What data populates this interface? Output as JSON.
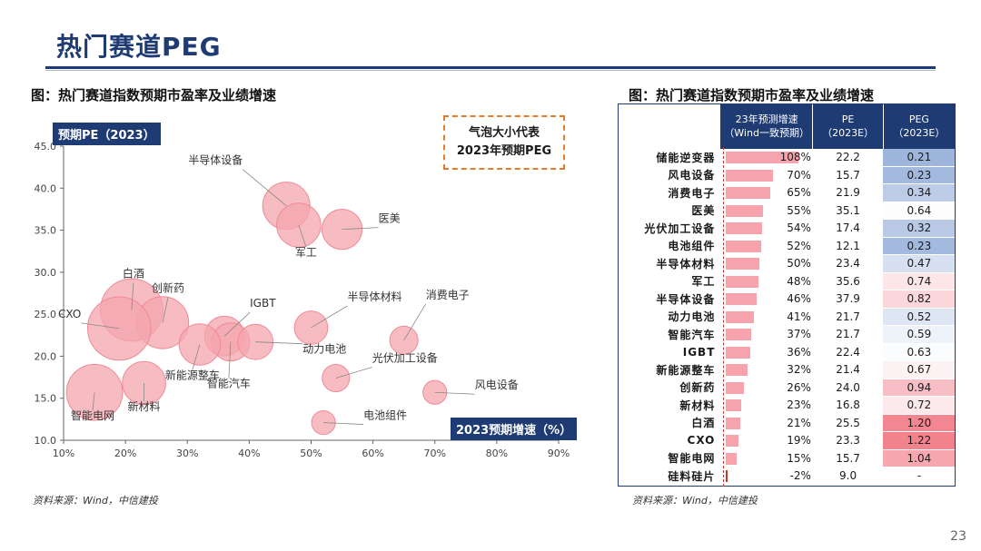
{
  "page": {
    "title": "热门赛道PEG",
    "left_caption": "图：热门赛道指数预期市盈率及业绩增速",
    "right_caption": "图：热门赛道指数预期市盈率及业绩增速",
    "source_left": "资料来源：Wind，中信建投",
    "source_right": "资料来源：Wind，中信建投",
    "page_number": "23",
    "bubble_note": "气泡大小代表\n2023年预期PEG"
  },
  "colors": {
    "navy": "#1f3b73",
    "bubble": "#f4a6ae",
    "bubble_edge": "#f08a96",
    "bar": "#f6a3ad"
  },
  "chart_data": [
    {
      "type": "scatter",
      "ylabel": "预期PE（2023）",
      "xlabel": "2023预期增速（%）",
      "xlim": [
        0.1,
        0.9
      ],
      "ylim": [
        10,
        45
      ],
      "x_ticks": [
        "10%",
        "20%",
        "30%",
        "40%",
        "50%",
        "60%",
        "70%",
        "80%",
        "90%"
      ],
      "y_ticks": [
        "10.0",
        "15.0",
        "20.0",
        "25.0",
        "30.0",
        "35.0",
        "40.0",
        "45.0"
      ],
      "grid": false,
      "points": [
        {
          "label": "半导体设备",
          "x": 0.46,
          "y": 37.9,
          "size": 0.82
        },
        {
          "label": "军工",
          "x": 0.48,
          "y": 35.6,
          "size": 0.74
        },
        {
          "label": "医美",
          "x": 0.55,
          "y": 35.1,
          "size": 0.64
        },
        {
          "label": "白酒",
          "x": 0.21,
          "y": 25.5,
          "size": 1.2
        },
        {
          "label": "创新药",
          "x": 0.26,
          "y": 24.0,
          "size": 0.94
        },
        {
          "label": "CXO",
          "x": 0.19,
          "y": 23.3,
          "size": 1.22
        },
        {
          "label": "IGBT",
          "x": 0.36,
          "y": 22.4,
          "size": 0.63
        },
        {
          "label": "智能汽车",
          "x": 0.37,
          "y": 21.7,
          "size": 0.59
        },
        {
          "label": "半导体材料",
          "x": 0.5,
          "y": 23.4,
          "size": 0.47
        },
        {
          "label": "动力电池",
          "x": 0.41,
          "y": 21.7,
          "size": 0.52
        },
        {
          "label": "新能源整车",
          "x": 0.32,
          "y": 21.4,
          "size": 0.67
        },
        {
          "label": "消费电子",
          "x": 0.65,
          "y": 21.9,
          "size": 0.34
        },
        {
          "label": "光伏加工设备",
          "x": 0.54,
          "y": 17.4,
          "size": 0.32
        },
        {
          "label": "新材料",
          "x": 0.23,
          "y": 16.8,
          "size": 0.72
        },
        {
          "label": "智能电网",
          "x": 0.15,
          "y": 15.7,
          "size": 1.04
        },
        {
          "label": "风电设备",
          "x": 0.7,
          "y": 15.7,
          "size": 0.23
        },
        {
          "label": "电池组件",
          "x": 0.52,
          "y": 12.1,
          "size": 0.23
        }
      ]
    },
    {
      "type": "table",
      "headers": [
        "23年预测增速\n（Wind一致预期）",
        "PE\n（2023E）",
        "PEG\n（2023E）"
      ],
      "rows": [
        {
          "name": "储能逆变器",
          "growth": "108%",
          "g": 1.08,
          "pe": "22.2",
          "peg": "0.21",
          "peg_color": "#9fb6dc"
        },
        {
          "name": "风电设备",
          "growth": "70%",
          "g": 0.7,
          "pe": "15.7",
          "peg": "0.23",
          "peg_color": "#a3b9de"
        },
        {
          "name": "消费电子",
          "growth": "65%",
          "g": 0.65,
          "pe": "21.9",
          "peg": "0.34",
          "peg_color": "#bccbe6"
        },
        {
          "name": "医美",
          "growth": "55%",
          "g": 0.55,
          "pe": "35.1",
          "peg": "0.64",
          "peg_color": "#fdfdfe"
        },
        {
          "name": "光伏加工设备",
          "growth": "54%",
          "g": 0.54,
          "pe": "17.4",
          "peg": "0.32",
          "peg_color": "#b8c8e5"
        },
        {
          "name": "电池组件",
          "growth": "52%",
          "g": 0.52,
          "pe": "12.1",
          "peg": "0.23",
          "peg_color": "#a3b9de"
        },
        {
          "name": "半导体材料",
          "growth": "50%",
          "g": 0.5,
          "pe": "23.4",
          "peg": "0.47",
          "peg_color": "#d6e0f0"
        },
        {
          "name": "军工",
          "growth": "48%",
          "g": 0.48,
          "pe": "35.6",
          "peg": "0.74",
          "peg_color": "#fce6e8"
        },
        {
          "name": "半导体设备",
          "growth": "46%",
          "g": 0.46,
          "pe": "37.9",
          "peg": "0.82",
          "peg_color": "#fbd6da"
        },
        {
          "name": "动力电池",
          "growth": "41%",
          "g": 0.41,
          "pe": "21.7",
          "peg": "0.52",
          "peg_color": "#dfe6f3"
        },
        {
          "name": "智能汽车",
          "growth": "37%",
          "g": 0.37,
          "pe": "21.7",
          "peg": "0.59",
          "peg_color": "#eef2f9"
        },
        {
          "name": "IGBT",
          "growth": "36%",
          "g": 0.36,
          "pe": "22.4",
          "peg": "0.63",
          "peg_color": "#fbfcfe"
        },
        {
          "name": "新能源整车",
          "growth": "32%",
          "g": 0.32,
          "pe": "21.4",
          "peg": "0.67",
          "peg_color": "#fdf2f3"
        },
        {
          "name": "创新药",
          "growth": "26%",
          "g": 0.26,
          "pe": "24.0",
          "peg": "0.94",
          "peg_color": "#f8bec5"
        },
        {
          "name": "新材料",
          "growth": "23%",
          "g": 0.23,
          "pe": "16.8",
          "peg": "0.72",
          "peg_color": "#fce9eb"
        },
        {
          "name": "白酒",
          "growth": "21%",
          "g": 0.21,
          "pe": "25.5",
          "peg": "1.20",
          "peg_color": "#f28791"
        },
        {
          "name": "CXO",
          "growth": "19%",
          "g": 0.19,
          "pe": "23.3",
          "peg": "1.22",
          "peg_color": "#f2838d"
        },
        {
          "name": "智能电网",
          "growth": "15%",
          "g": 0.15,
          "pe": "15.7",
          "peg": "1.04",
          "peg_color": "#f6a7b0"
        },
        {
          "name": "硅料硅片",
          "growth": "-2%",
          "g": -0.02,
          "pe": "9.0",
          "peg": "-",
          "peg_color": "#ffffff"
        }
      ]
    }
  ]
}
